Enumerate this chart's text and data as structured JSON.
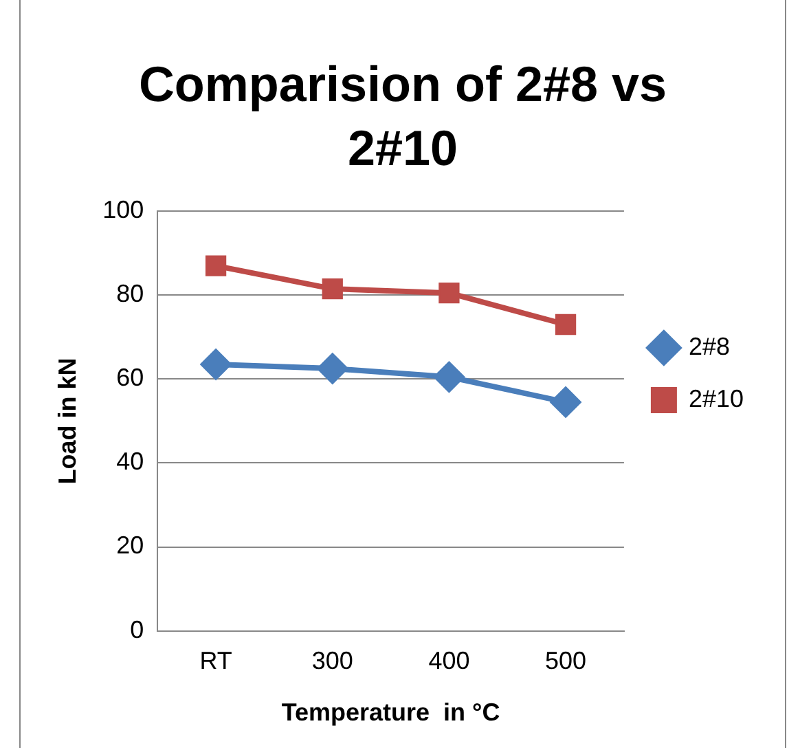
{
  "chart_data": {
    "type": "line",
    "title": "Comparision of 2#8 vs 2#10",
    "xlabel": "Temperature  in °C",
    "ylabel": "Load in kN",
    "categories": [
      "RT",
      "300",
      "400",
      "500"
    ],
    "series": [
      {
        "name": "2#8",
        "color": "#4a7ebb",
        "values": [
          63.5,
          62.5,
          60.5,
          54.5
        ],
        "marker": "diamond"
      },
      {
        "name": "2#10",
        "color": "#be4b48",
        "values": [
          87,
          81.5,
          80.5,
          73
        ],
        "marker": "square"
      }
    ],
    "ylim": [
      0,
      100
    ],
    "yticks": [
      0,
      20,
      40,
      60,
      80,
      100
    ],
    "grid": "y",
    "legend": "right",
    "line_style": "solid"
  }
}
